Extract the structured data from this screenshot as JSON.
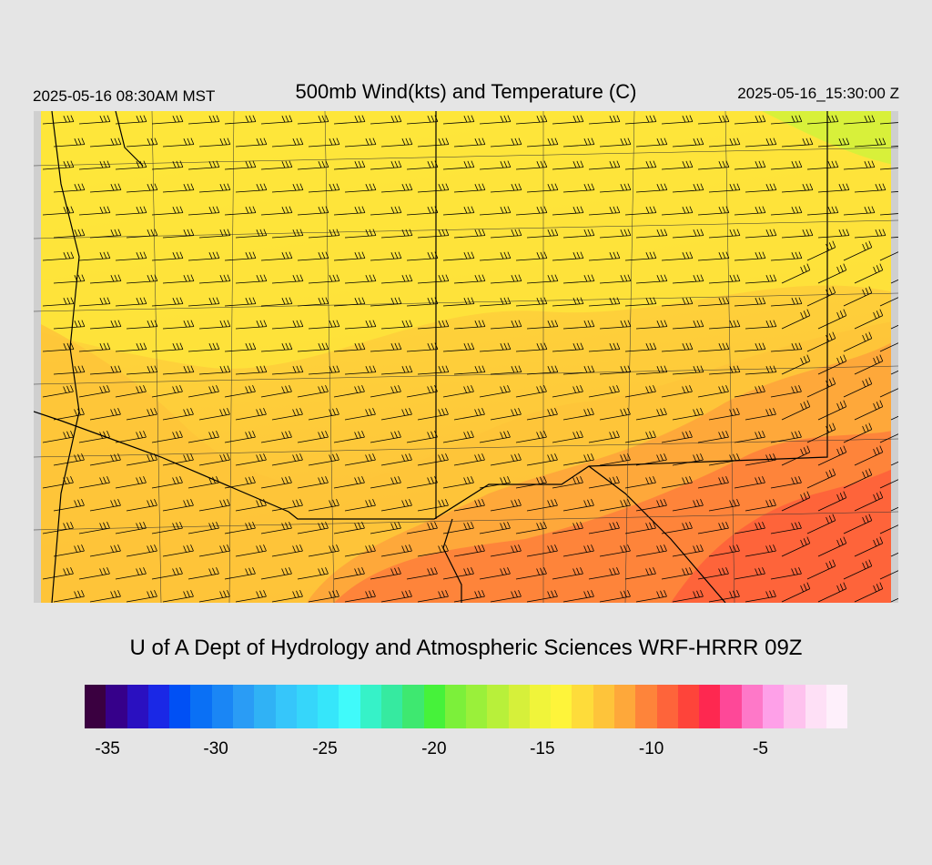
{
  "header": {
    "local_time": "2025-05-16 08:30AM MST",
    "title": "500mb Wind(kts) and Temperature (C)",
    "utc_time": "2025-05-16_15:30:00 Z"
  },
  "credit": "U of A Dept of Hydrology and Atmospheric Sciences WRF-HRRR 09Z",
  "colorbar": {
    "colors": [
      "#3a0040",
      "#36008a",
      "#2a10c0",
      "#1a28e6",
      "#0050f5",
      "#0a70f5",
      "#1a86f5",
      "#2a9cf5",
      "#30b2f5",
      "#36c6fa",
      "#36d6fa",
      "#36e6fa",
      "#40fafa",
      "#36f2c8",
      "#36eaa0",
      "#3ee870",
      "#46f23a",
      "#7cf03a",
      "#9af03a",
      "#b8f03a",
      "#d6f03a",
      "#f0f43a",
      "#fef43a",
      "#fedc3a",
      "#fec43a",
      "#fea83a",
      "#fe843a",
      "#fe643a",
      "#fe443a",
      "#fe2850",
      "#fe4898",
      "#fe78c8",
      "#fea0e8",
      "#fec2ee",
      "#fee0f6",
      "#fef0fb"
    ],
    "ticks": [
      {
        "label": "-35",
        "pos": 0.03
      },
      {
        "label": "-30",
        "pos": 0.172
      },
      {
        "label": "-25",
        "pos": 0.315
      },
      {
        "label": "-20",
        "pos": 0.458
      },
      {
        "label": "-15",
        "pos": 0.6
      },
      {
        "label": "-10",
        "pos": 0.743
      },
      {
        "label": "-5",
        "pos": 0.886
      }
    ]
  }
}
